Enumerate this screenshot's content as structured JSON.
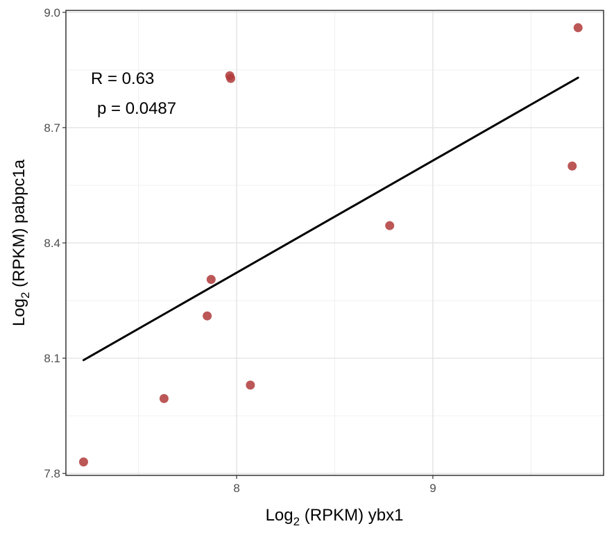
{
  "chart_data": {
    "type": "scatter",
    "title": "",
    "xlabel": {
      "prefix": "Log",
      "subscript": "2",
      "suffix": " (RPKM) ybx1"
    },
    "ylabel": {
      "prefix": "Log",
      "subscript": "2",
      "suffix": " (RPKM) pabpc1a"
    },
    "xlim": [
      7.13,
      9.87
    ],
    "ylim": [
      7.795,
      9.005
    ],
    "x_ticks": [
      8,
      9
    ],
    "x_tick_labels": [
      "8",
      "9"
    ],
    "y_ticks": [
      7.8,
      8.1,
      8.4,
      8.7,
      9.0
    ],
    "y_tick_labels": [
      "7.8",
      "8.1",
      "8.4",
      "8.7",
      "9.0"
    ],
    "x_minor_gridlines": [
      7.5,
      8.5,
      9.5
    ],
    "y_minor_gridlines": [
      7.95,
      8.25,
      8.55,
      8.85
    ],
    "grid": true,
    "points": [
      {
        "x": 7.22,
        "y": 7.83
      },
      {
        "x": 7.63,
        "y": 7.995
      },
      {
        "x": 7.85,
        "y": 8.21
      },
      {
        "x": 7.87,
        "y": 8.305
      },
      {
        "x": 7.965,
        "y": 8.835
      },
      {
        "x": 7.97,
        "y": 8.828
      },
      {
        "x": 8.07,
        "y": 8.03
      },
      {
        "x": 8.78,
        "y": 8.445
      },
      {
        "x": 9.71,
        "y": 8.6
      },
      {
        "x": 9.74,
        "y": 8.96
      }
    ],
    "point_color": "#b03a3a",
    "regression_line": {
      "x": [
        7.22,
        9.74
      ],
      "y": [
        8.095,
        8.83
      ]
    },
    "line_color": "#000000",
    "annotations": {
      "r_text": "R = 0.63",
      "p_text": "p = 0.0487"
    }
  }
}
